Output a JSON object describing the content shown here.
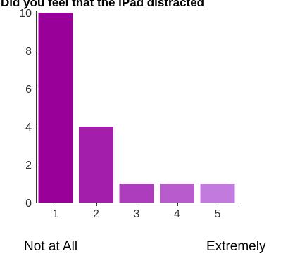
{
  "chart_data": {
    "type": "bar",
    "title": "Did you feel that the iPad distracted",
    "categories": [
      "1",
      "2",
      "3",
      "4",
      "5"
    ],
    "values": [
      10,
      4,
      1,
      1,
      1
    ],
    "colors": [
      "#990099",
      "#a31fab",
      "#ad3dbc",
      "#b85ccd",
      "#c27ade"
    ],
    "ylim": [
      0,
      10
    ],
    "yticks": [
      0,
      2,
      4,
      6,
      8,
      10
    ],
    "grid": false,
    "scale_labels": {
      "low": "Not at All",
      "high": "Extremely"
    }
  }
}
